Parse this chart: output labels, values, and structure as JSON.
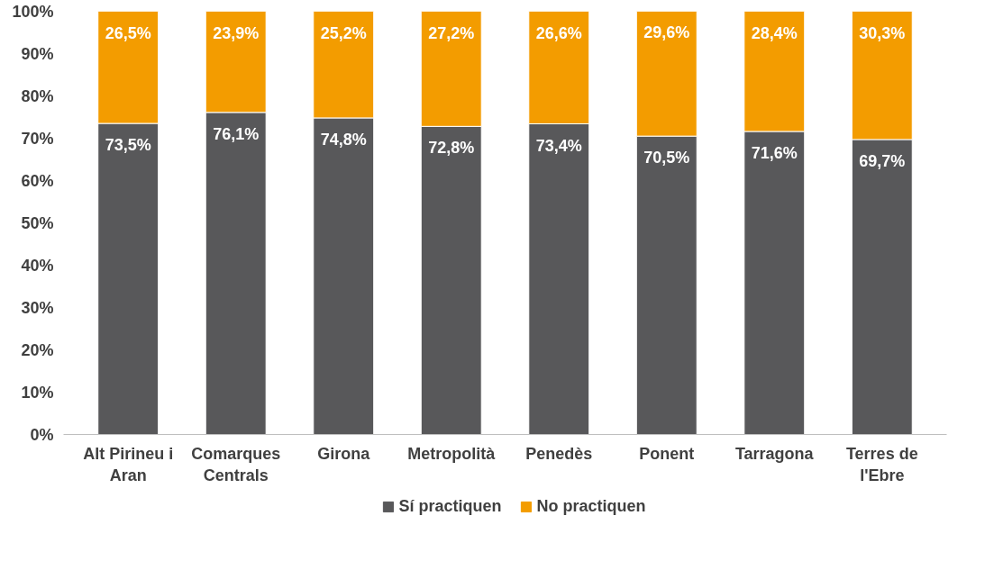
{
  "chart_data": {
    "type": "bar",
    "stacked": true,
    "categories": [
      "Alt Pirineu i Aran",
      "Comarques Centrals",
      "Girona",
      "Metropolità",
      "Penedès",
      "Ponent",
      "Tarragona",
      "Terres de l'Ebre"
    ],
    "series": [
      {
        "name": "Sí practiquen",
        "color": "#58585a",
        "values": [
          73.5,
          76.1,
          74.8,
          72.8,
          73.4,
          70.5,
          71.6,
          69.7
        ],
        "value_labels": [
          "73,5%",
          "76,1%",
          "74,8%",
          "72,8%",
          "73,4%",
          "70,5%",
          "71,6%",
          "69,7%"
        ]
      },
      {
        "name": "No practiquen",
        "color": "#f39c00",
        "values": [
          26.5,
          23.9,
          25.2,
          27.2,
          26.6,
          29.6,
          28.4,
          30.3
        ],
        "value_labels": [
          "26,5%",
          "23,9%",
          "25,2%",
          "27,2%",
          "26,6%",
          "29,6%",
          "28,4%",
          "30,3%"
        ]
      }
    ],
    "ylim": [
      0,
      100
    ],
    "yticks": [
      {
        "value": 0,
        "label": "0%"
      },
      {
        "value": 10,
        "label": "10%"
      },
      {
        "value": 20,
        "label": "20%"
      },
      {
        "value": 30,
        "label": "30%"
      },
      {
        "value": 40,
        "label": "40%"
      },
      {
        "value": 50,
        "label": "50%"
      },
      {
        "value": 60,
        "label": "60%"
      },
      {
        "value": 70,
        "label": "70%"
      },
      {
        "value": 80,
        "label": "80%"
      },
      {
        "value": 90,
        "label": "90%"
      },
      {
        "value": 100,
        "label": "100%"
      }
    ],
    "grid": false,
    "legend": "bottom"
  }
}
